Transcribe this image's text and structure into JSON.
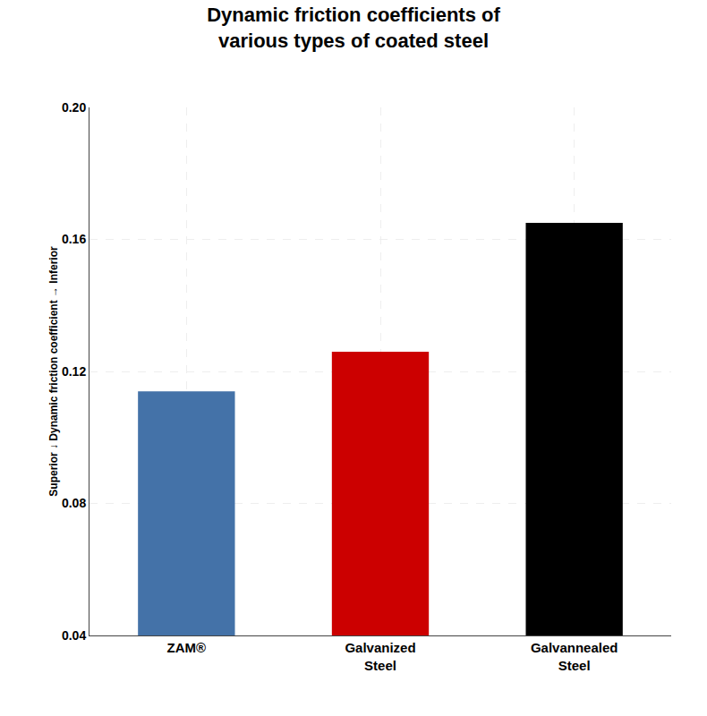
{
  "chart_data": {
    "type": "bar",
    "title": "Dynamic friction coefficients of\nvarious types of coated steel",
    "ylabel": "Superior ↓ Dynamic friction coefficient → Inferior",
    "categories": [
      "ZAM®",
      "Galvanized\nSteel",
      "Galvannealed\nSteel"
    ],
    "values": [
      0.114,
      0.126,
      0.165
    ],
    "colors": [
      "#4472a8",
      "#cc0000",
      "#000000"
    ],
    "ylim": [
      0.04,
      0.2
    ],
    "yticks": [
      0.04,
      0.08,
      0.12,
      0.16,
      {
        "value": 0.2,
        "label": "0.20"
      }
    ],
    "grid": true
  }
}
